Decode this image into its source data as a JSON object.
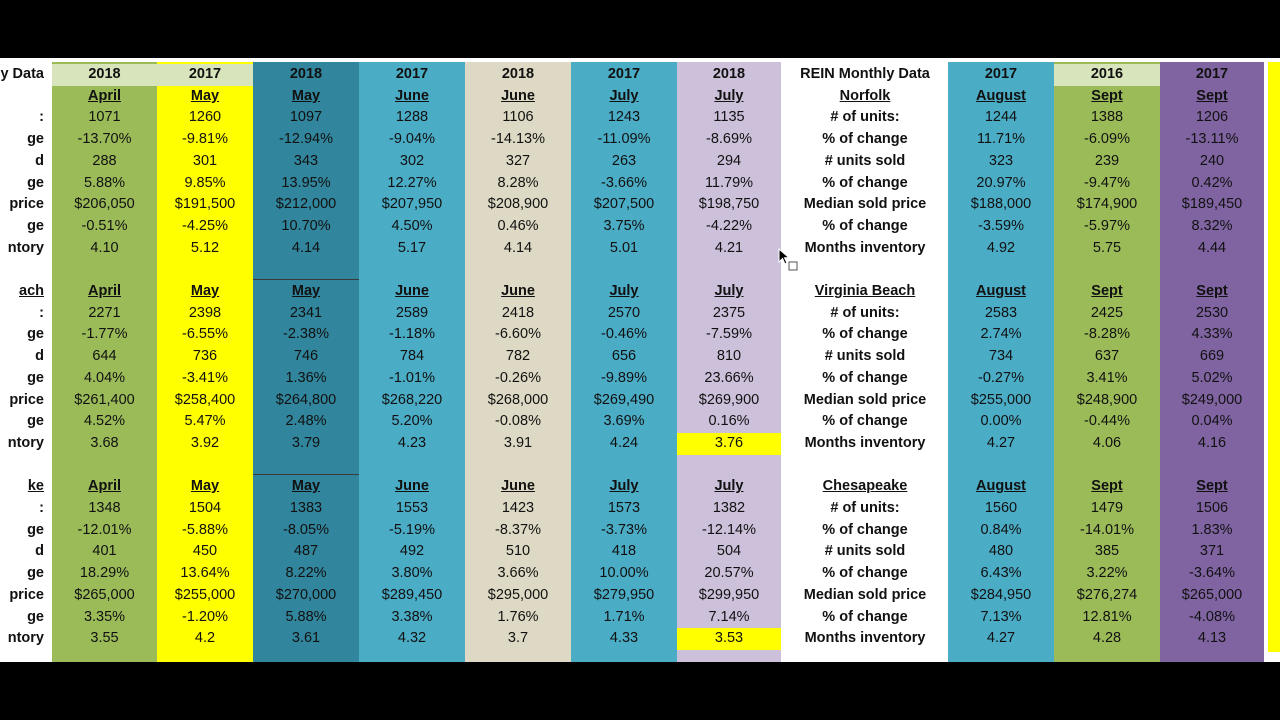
{
  "colors": {
    "green": "#9bbb59",
    "yellow": "#ffff00",
    "teal_dark": "#31859c",
    "teal": "#4bacc6",
    "tan": "#ddd9c4",
    "lavender": "#ccc0da",
    "purple": "#8064a2",
    "header_green": "#d8e4bc",
    "white": "#ffffff"
  },
  "labels_left": {
    "header": "y Data",
    "blocks": [
      {
        "title": "",
        "rows": [
          ":",
          "ge",
          "d",
          "ge",
          "price",
          "ge",
          "ntory"
        ]
      },
      {
        "title": "ach",
        "rows": [
          ":",
          "ge",
          "d",
          "ge",
          "price",
          "ge",
          "ntory"
        ]
      },
      {
        "title": "ke",
        "rows": [
          ":",
          "ge",
          "d",
          "ge",
          "price",
          "ge",
          "ntory"
        ]
      }
    ]
  },
  "middle_labels": {
    "header": "REIN Monthly Data",
    "blocks": [
      {
        "title": "Norfolk",
        "rows": [
          "# of units:",
          "% of change",
          "# units sold",
          "% of change",
          "Median sold price",
          "% of change",
          "Months inventory"
        ]
      },
      {
        "title": "Virginia Beach",
        "rows": [
          "# of units:",
          "% of change",
          "# units sold",
          "% of change",
          "Median sold price",
          "% of change",
          "Months inventory"
        ]
      },
      {
        "title": "Chesapeake",
        "rows": [
          "# of units:",
          "% of change",
          "# units sold",
          "% of change",
          "Median sold price",
          "% of change",
          "Months inventory"
        ]
      }
    ]
  },
  "columns": [
    {
      "year": "2018",
      "color": "green",
      "header_color": "header_green",
      "blocks": [
        {
          "month": "April",
          "values": [
            "1071",
            "-13.70%",
            "288",
            "5.88%",
            "$206,050",
            "-0.51%",
            "4.10"
          ]
        },
        {
          "month": "April",
          "values": [
            "2271",
            "-1.77%",
            "644",
            "4.04%",
            "$261,400",
            "4.52%",
            "3.68"
          ]
        },
        {
          "month": "April",
          "values": [
            "1348",
            "-12.01%",
            "401",
            "18.29%",
            "$265,000",
            "3.35%",
            "3.55"
          ]
        }
      ]
    },
    {
      "year": "2017",
      "color": "yellow",
      "header_color": "header_green",
      "blocks": [
        {
          "month": "May",
          "values": [
            "1260",
            "-9.81%",
            "301",
            "9.85%",
            "$191,500",
            "-4.25%",
            "5.12"
          ]
        },
        {
          "month": "May",
          "values": [
            "2398",
            "-6.55%",
            "736",
            "-3.41%",
            "$258,400",
            "5.47%",
            "3.92"
          ]
        },
        {
          "month": "May",
          "values": [
            "1504",
            "-5.88%",
            "450",
            "13.64%",
            "$255,000",
            "-1.20%",
            "4.2"
          ]
        }
      ]
    },
    {
      "year": "2018",
      "color": "teal_dark",
      "header_color": "teal_dark",
      "blocks": [
        {
          "month": "May",
          "values": [
            "1097",
            "-12.94%",
            "343",
            "13.95%",
            "$212,000",
            "10.70%",
            "4.14"
          ]
        },
        {
          "month": "May",
          "values": [
            "2341",
            "-2.38%",
            "746",
            "1.36%",
            "$264,800",
            "2.48%",
            "3.79"
          ]
        },
        {
          "month": "May",
          "values": [
            "1383",
            "-8.05%",
            "487",
            "8.22%",
            "$270,000",
            "5.88%",
            "3.61"
          ]
        }
      ]
    },
    {
      "year": "2017",
      "color": "teal",
      "header_color": "teal",
      "blocks": [
        {
          "month": "June",
          "values": [
            "1288",
            "-9.04%",
            "302",
            "12.27%",
            "$207,950",
            "4.50%",
            "5.17"
          ]
        },
        {
          "month": "June",
          "values": [
            "2589",
            "-1.18%",
            "784",
            "-1.01%",
            "$268,220",
            "5.20%",
            "4.23"
          ]
        },
        {
          "month": "June",
          "values": [
            "1553",
            "-5.19%",
            "492",
            "3.80%",
            "$289,450",
            "3.38%",
            "4.32"
          ]
        }
      ]
    },
    {
      "year": "2018",
      "color": "tan",
      "header_color": "tan",
      "blocks": [
        {
          "month": "June",
          "values": [
            "1106",
            "-14.13%",
            "327",
            "8.28%",
            "$208,900",
            "0.46%",
            "4.14"
          ]
        },
        {
          "month": "June",
          "values": [
            "2418",
            "-6.60%",
            "782",
            "-0.26%",
            "$268,000",
            "-0.08%",
            "3.91"
          ]
        },
        {
          "month": "June",
          "values": [
            "1423",
            "-8.37%",
            "510",
            "3.66%",
            "$295,000",
            "1.76%",
            "3.7"
          ]
        }
      ]
    },
    {
      "year": "2017",
      "color": "teal",
      "header_color": "teal",
      "blocks": [
        {
          "month": "July",
          "values": [
            "1243",
            "-11.09%",
            "263",
            "-3.66%",
            "$207,500",
            "3.75%",
            "5.01"
          ]
        },
        {
          "month": "July",
          "values": [
            "2570",
            "-0.46%",
            "656",
            "-9.89%",
            "$269,490",
            "3.69%",
            "4.24"
          ]
        },
        {
          "month": "July",
          "values": [
            "1573",
            "-3.73%",
            "418",
            "10.00%",
            "$279,950",
            "1.71%",
            "4.33"
          ]
        }
      ]
    },
    {
      "year": "2018",
      "color": "lavender",
      "header_color": "lavender",
      "blocks": [
        {
          "month": "July",
          "values": [
            "1135",
            "-8.69%",
            "294",
            "11.79%",
            "$198,750",
            "-4.22%",
            "4.21"
          ]
        },
        {
          "month": "July",
          "values": [
            "2375",
            "-7.59%",
            "810",
            "23.66%",
            "$269,900",
            "0.16%",
            "3.76"
          ],
          "highlight_last": true
        },
        {
          "month": "July",
          "values": [
            "1382",
            "-12.14%",
            "504",
            "20.57%",
            "$299,950",
            "7.14%",
            "3.53"
          ],
          "highlight_last": true
        }
      ]
    },
    {
      "year": "2017",
      "color": "teal",
      "header_color": "teal",
      "blocks": [
        {
          "month": "August",
          "values": [
            "1244",
            "11.71%",
            "323",
            "20.97%",
            "$188,000",
            "-3.59%",
            "4.92"
          ]
        },
        {
          "month": "August",
          "values": [
            "2583",
            "2.74%",
            "734",
            "-0.27%",
            "$255,000",
            "0.00%",
            "4.27"
          ]
        },
        {
          "month": "August",
          "values": [
            "1560",
            "0.84%",
            "480",
            "6.43%",
            "$284,950",
            "7.13%",
            "4.27"
          ]
        }
      ]
    },
    {
      "year": "2016",
      "color": "green",
      "header_color": "header_green",
      "blocks": [
        {
          "month": "Sept",
          "values": [
            "1388",
            "-6.09%",
            "239",
            "-9.47%",
            "$174,900",
            "-5.97%",
            "5.75"
          ]
        },
        {
          "month": "Sept",
          "values": [
            "2425",
            "-8.28%",
            "637",
            "3.41%",
            "$248,900",
            "-0.44%",
            "4.06"
          ]
        },
        {
          "month": "Sept",
          "values": [
            "1479",
            "-14.01%",
            "385",
            "3.22%",
            "$276,274",
            "12.81%",
            "4.28"
          ]
        }
      ]
    },
    {
      "year": "2017",
      "color": "purple",
      "header_color": "purple",
      "blocks": [
        {
          "month": "Sept",
          "values": [
            "1206",
            "-13.11%",
            "240",
            "0.42%",
            "$189,450",
            "8.32%",
            "4.44"
          ]
        },
        {
          "month": "Sept",
          "values": [
            "2530",
            "4.33%",
            "669",
            "5.02%",
            "$249,000",
            "0.04%",
            "4.16"
          ]
        },
        {
          "month": "Sept",
          "values": [
            "1506",
            "1.83%",
            "371",
            "-3.64%",
            "$265,000",
            "-4.08%",
            "4.13"
          ]
        }
      ]
    }
  ]
}
